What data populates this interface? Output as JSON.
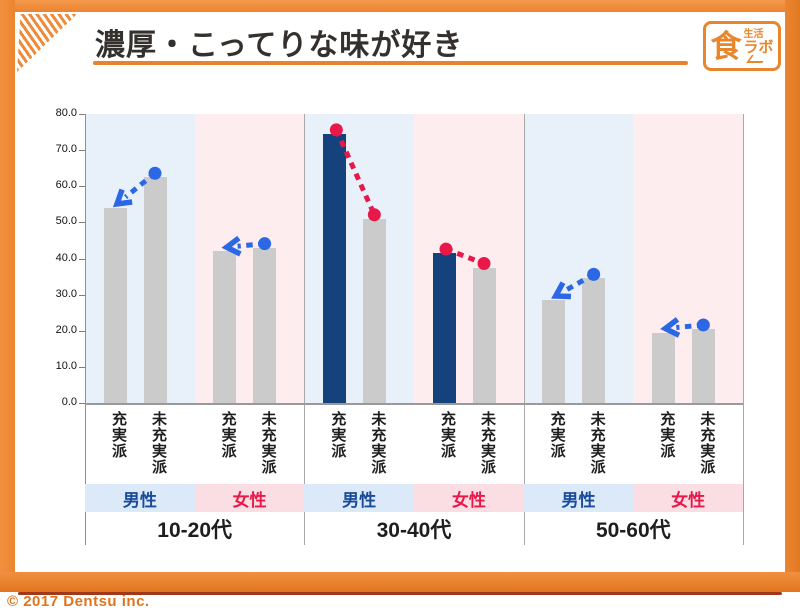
{
  "header": {
    "title": "濃厚・こってりな味が好き"
  },
  "logo": {
    "top_text": "生活",
    "main_text": "食",
    "sub_text": "ラボ"
  },
  "footer": {
    "copyright": "© 2017 Dentsu inc."
  },
  "chart_data": {
    "type": "bar",
    "title": "濃厚・こってりな味が好き",
    "ylim": [
      0,
      80
    ],
    "ytick_step": 10,
    "ytick_labels": [
      "0.0",
      "10.0",
      "20.0",
      "30.0",
      "40.0",
      "50.0",
      "60.0",
      "70.0",
      "80.0"
    ],
    "grid": false,
    "bar_category_labels": [
      "充実派",
      "未充実派"
    ],
    "colors": {
      "bar_default": "#cbcbcb",
      "bar_highlight": "#14427d",
      "male_plot_bg": "#e8f1fa",
      "female_plot_bg": "#fdedee",
      "male_band_bg": "#dbe9f8",
      "female_band_bg": "#fbdee4",
      "male_text": "#1a4b9b",
      "female_text": "#e8194a",
      "connector_blue": "#2d68e4",
      "connector_red": "#e8194a"
    },
    "groups": [
      {
        "age_label": "10-20代",
        "sections": [
          {
            "gender": "male",
            "gender_label": "男性",
            "bars": [
              {
                "label": "充実派",
                "value": 54.0,
                "highlight": false
              },
              {
                "label": "未充実派",
                "value": 62.5,
                "highlight": false
              }
            ],
            "connector": {
              "style": "arrow",
              "color": "blue",
              "from": "未充実派",
              "to": "充実派"
            }
          },
          {
            "gender": "female",
            "gender_label": "女性",
            "bars": [
              {
                "label": "充実派",
                "value": 42.0,
                "highlight": false
              },
              {
                "label": "未充実派",
                "value": 43.0,
                "highlight": false
              }
            ],
            "connector": {
              "style": "arrow",
              "color": "blue",
              "from": "未充実派",
              "to": "充実派"
            }
          }
        ]
      },
      {
        "age_label": "30-40代",
        "sections": [
          {
            "gender": "male",
            "gender_label": "男性",
            "bars": [
              {
                "label": "充実派",
                "value": 74.5,
                "highlight": true
              },
              {
                "label": "未充実派",
                "value": 51.0,
                "highlight": false
              }
            ],
            "connector": {
              "style": "dots",
              "color": "red",
              "from": "充実派",
              "to": "未充実派"
            }
          },
          {
            "gender": "female",
            "gender_label": "女性",
            "bars": [
              {
                "label": "充実派",
                "value": 41.5,
                "highlight": true
              },
              {
                "label": "未充実派",
                "value": 37.5,
                "highlight": false
              }
            ],
            "connector": {
              "style": "dots",
              "color": "red",
              "from": "充実派",
              "to": "未充実派"
            }
          }
        ]
      },
      {
        "age_label": "50-60代",
        "sections": [
          {
            "gender": "male",
            "gender_label": "男性",
            "bars": [
              {
                "label": "充実派",
                "value": 28.5,
                "highlight": false
              },
              {
                "label": "未充実派",
                "value": 34.5,
                "highlight": false
              }
            ],
            "connector": {
              "style": "arrow",
              "color": "blue",
              "from": "未充実派",
              "to": "充実派"
            }
          },
          {
            "gender": "female",
            "gender_label": "女性",
            "bars": [
              {
                "label": "充実派",
                "value": 19.5,
                "highlight": false
              },
              {
                "label": "未充実派",
                "value": 20.5,
                "highlight": false
              }
            ],
            "connector": {
              "style": "arrow",
              "color": "blue",
              "from": "未充実派",
              "to": "充実派"
            }
          }
        ]
      }
    ]
  }
}
